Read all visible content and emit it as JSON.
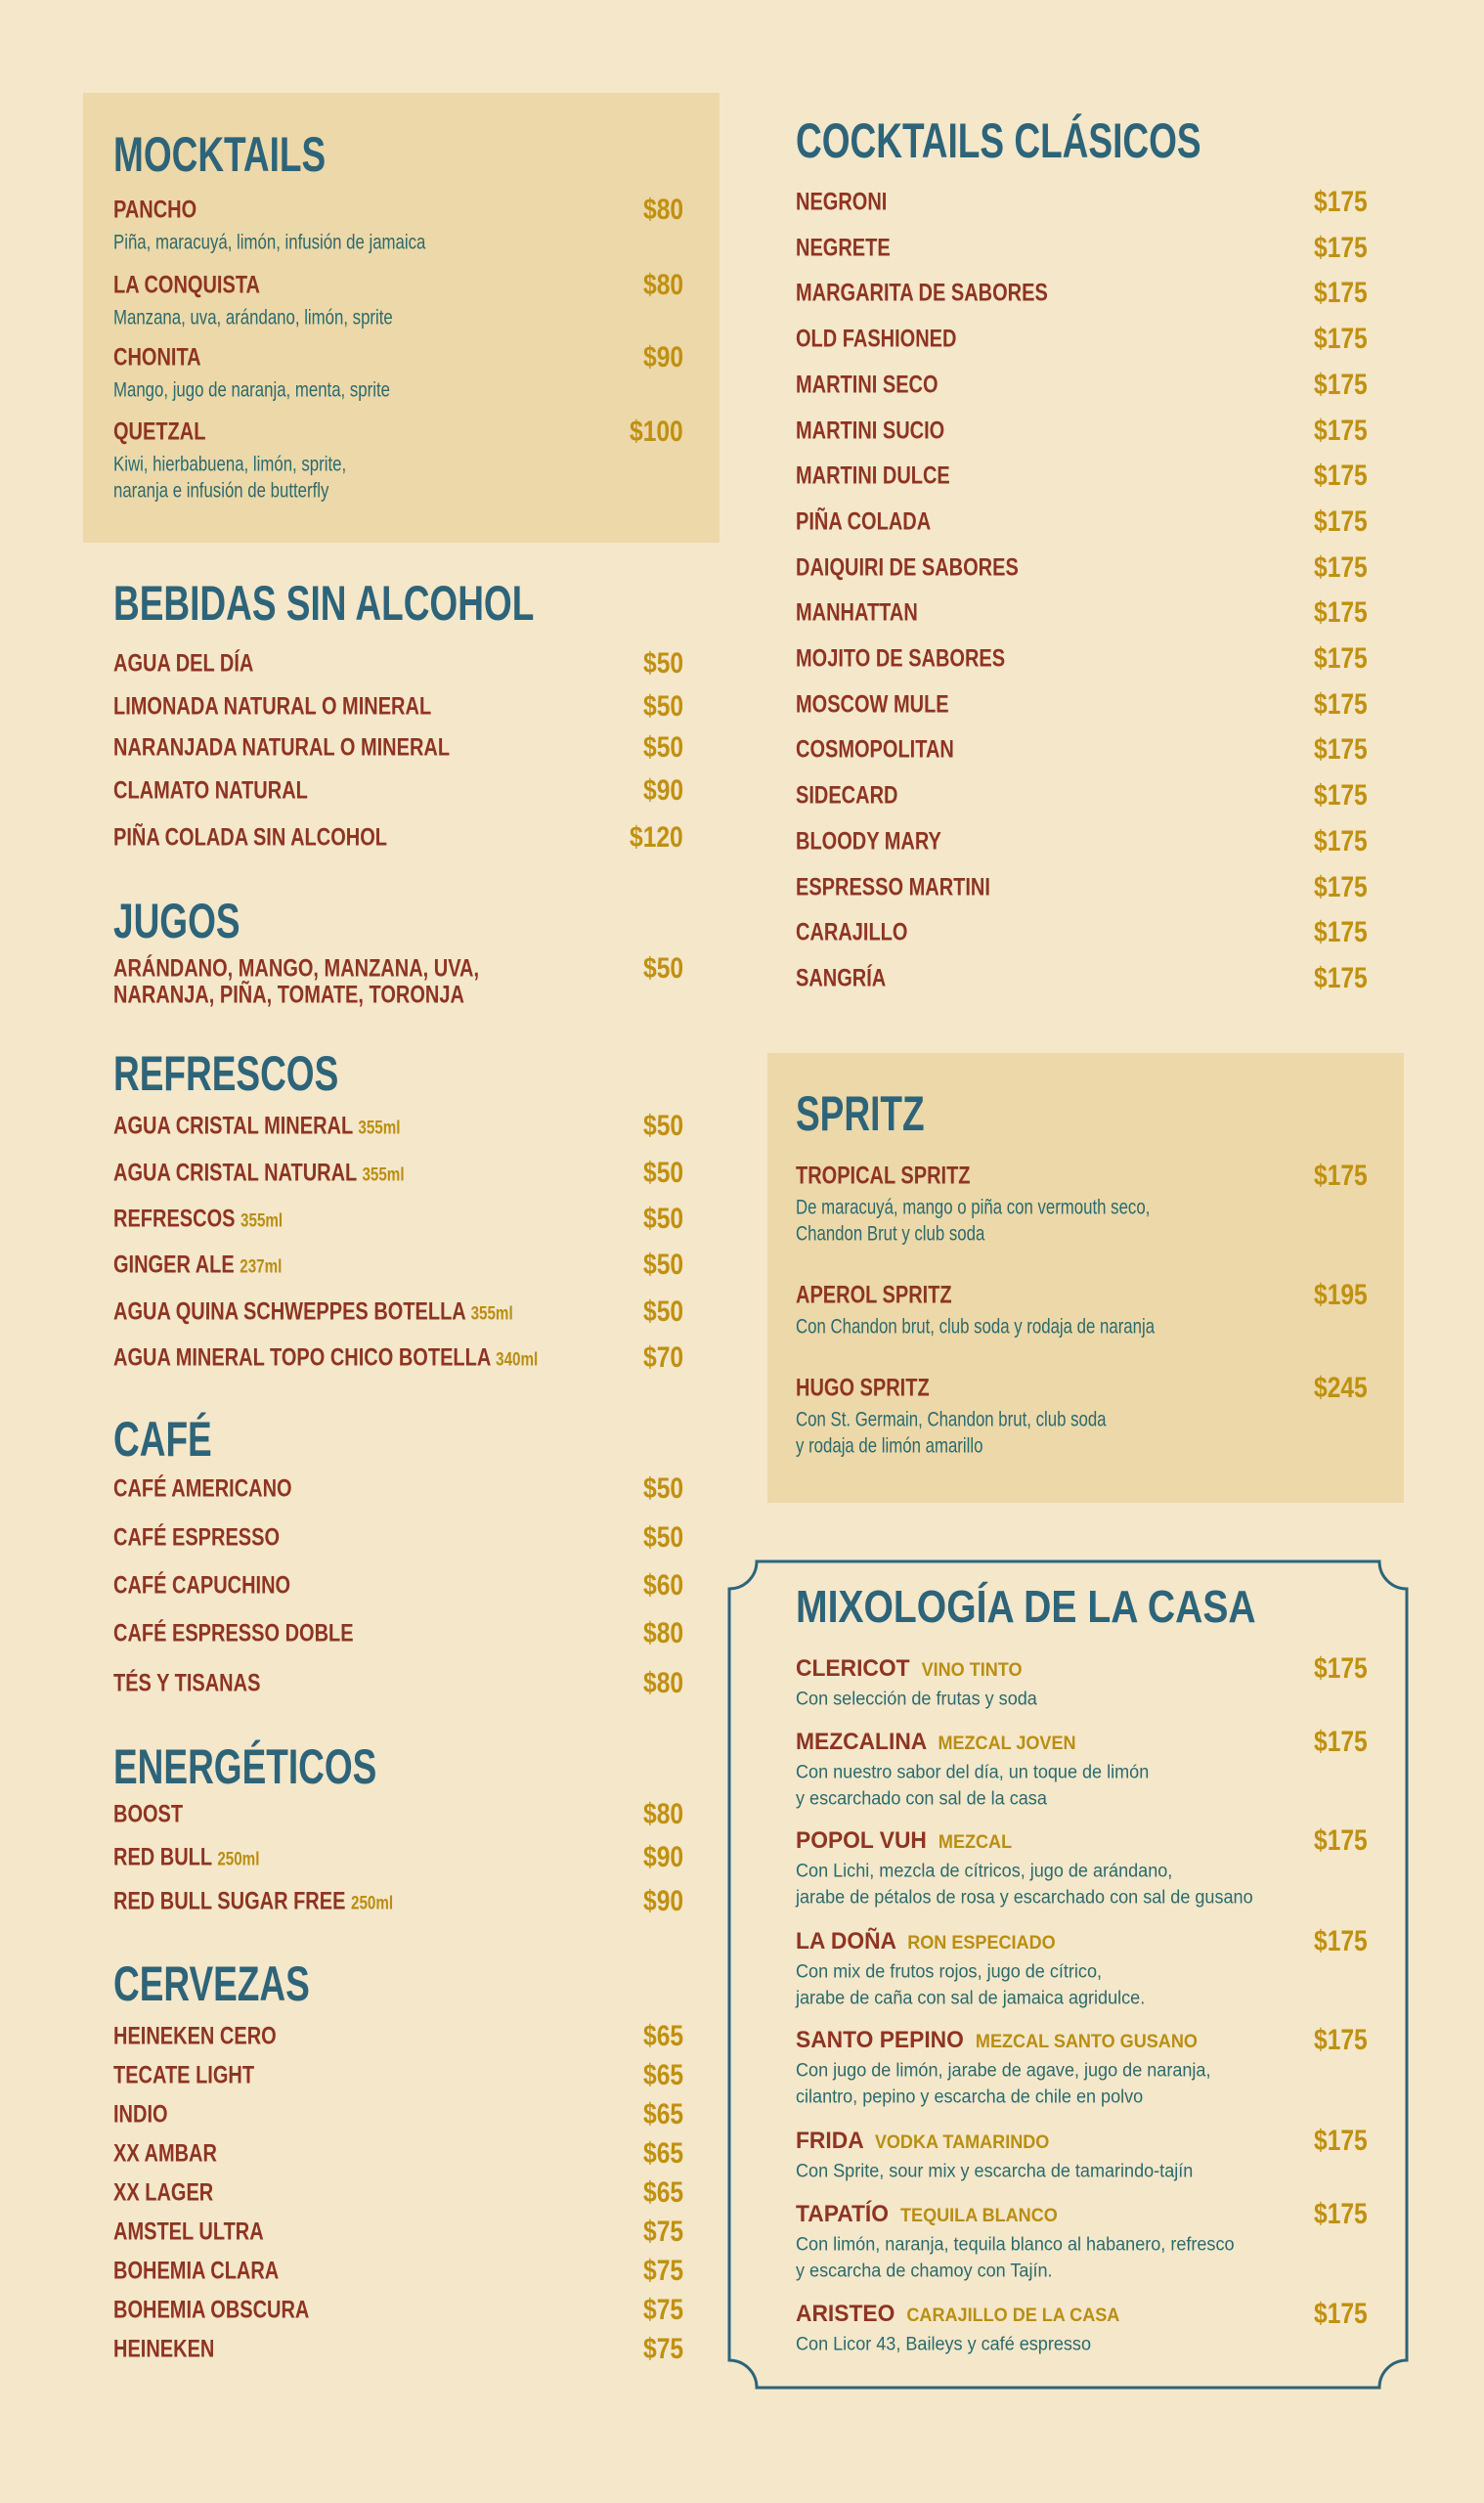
{
  "colors": {
    "heading": "#2d6479",
    "item": "#8e3422",
    "price": "#c0900f",
    "description": "#2c6a6c",
    "background": "#f4e7ca",
    "panel": "#ecd8a9"
  },
  "sections": [
    {
      "title": "MOCKTAILS",
      "items": [
        {
          "name": "PANCHO",
          "price": "$80",
          "desc": [
            "Piña, maracuyá, limón, infusión de jamaica"
          ]
        },
        {
          "name": "LA CONQUISTA",
          "price": "$80",
          "desc": [
            "Manzana, uva, arándano, limón, sprite"
          ]
        },
        {
          "name": "CHONITA",
          "price": "$90",
          "desc": [
            "Mango, jugo de naranja, menta, sprite"
          ]
        },
        {
          "name": "QUETZAL",
          "price": "$100",
          "desc": [
            "Kiwi, hierbabuena, limón, sprite,",
            "naranja e infusión de butterfly"
          ]
        }
      ]
    },
    {
      "title": "BEBIDAS SIN ALCOHOL",
      "items": [
        {
          "name": "AGUA DEL DÍA",
          "price": "$50"
        },
        {
          "name": "LIMONADA NATURAL O MINERAL",
          "price": "$50"
        },
        {
          "name": "NARANJADA NATURAL O MINERAL",
          "price": "$50"
        },
        {
          "name": "CLAMATO NATURAL",
          "price": "$90"
        },
        {
          "name": "PIÑA COLADA SIN ALCOHOL",
          "price": "$120"
        }
      ]
    },
    {
      "title": "JUGOS",
      "items": [
        {
          "name": "ARÁNDANO, MANGO, MANZANA, UVA,",
          "price": "$50"
        },
        {
          "name": "NARANJA, PIÑA, TOMATE, TORONJA"
        }
      ]
    },
    {
      "title": "REFRESCOS",
      "items": [
        {
          "name": "AGUA CRISTAL MINERAL",
          "note": "355ml",
          "price": "$50"
        },
        {
          "name": "AGUA CRISTAL NATURAL",
          "note": "355ml",
          "price": "$50"
        },
        {
          "name": "REFRESCOS",
          "note": "355ml",
          "price": "$50"
        },
        {
          "name": "GINGER ALE",
          "note": "237ml",
          "price": "$50"
        },
        {
          "name": "AGUA QUINA SCHWEPPES BOTELLA",
          "note": "355ml",
          "price": "$50"
        },
        {
          "name": "AGUA MINERAL TOPO CHICO BOTELLA",
          "note": "340ml",
          "price": "$70"
        }
      ]
    },
    {
      "title": "CAFÉ",
      "items": [
        {
          "name": "CAFÉ AMERICANO",
          "price": "$50"
        },
        {
          "name": "CAFÉ ESPRESSO",
          "price": "$50"
        },
        {
          "name": "CAFÉ CAPUCHINO",
          "price": "$60"
        },
        {
          "name": "CAFÉ ESPRESSO DOBLE",
          "price": "$80"
        },
        {
          "name": "TÉS Y TISANAS",
          "price": "$80"
        }
      ]
    },
    {
      "title": "ENERGÉTICOS",
      "items": [
        {
          "name": "BOOST",
          "price": "$80"
        },
        {
          "name": "RED BULL",
          "note": "250ml",
          "price": "$90"
        },
        {
          "name": "RED BULL SUGAR FREE",
          "note": "250ml",
          "price": "$90"
        }
      ]
    },
    {
      "title": "CERVEZAS",
      "items": [
        {
          "name": "HEINEKEN CERO",
          "price": "$65"
        },
        {
          "name": "TECATE LIGHT",
          "price": "$65"
        },
        {
          "name": "INDIO",
          "price": "$65"
        },
        {
          "name": "XX AMBAR",
          "price": "$65"
        },
        {
          "name": "XX LAGER",
          "price": "$65"
        },
        {
          "name": "AMSTEL ULTRA",
          "price": "$75"
        },
        {
          "name": "BOHEMIA CLARA",
          "price": "$75"
        },
        {
          "name": "BOHEMIA OBSCURA",
          "price": "$75"
        },
        {
          "name": "HEINEKEN",
          "price": "$75"
        }
      ]
    },
    {
      "title": "COCKTAILS CLÁSICOS",
      "items": [
        {
          "name": "NEGRONI",
          "price": "$175"
        },
        {
          "name": "NEGRETE",
          "price": "$175"
        },
        {
          "name": "MARGARITA DE SABORES",
          "price": "$175"
        },
        {
          "name": "OLD FASHIONED",
          "price": "$175"
        },
        {
          "name": "MARTINI SECO",
          "price": "$175"
        },
        {
          "name": "MARTINI SUCIO",
          "price": "$175"
        },
        {
          "name": "MARTINI DULCE",
          "price": "$175"
        },
        {
          "name": "PIÑA COLADA",
          "price": "$175"
        },
        {
          "name": "DAIQUIRI DE SABORES",
          "price": "$175"
        },
        {
          "name": "MANHATTAN",
          "price": "$175"
        },
        {
          "name": "MOJITO DE SABORES",
          "price": "$175"
        },
        {
          "name": "MOSCOW MULE",
          "price": "$175"
        },
        {
          "name": "COSMOPOLITAN",
          "price": "$175"
        },
        {
          "name": "SIDECARD",
          "price": "$175"
        },
        {
          "name": "BLOODY MARY",
          "price": "$175"
        },
        {
          "name": "ESPRESSO MARTINI",
          "price": "$175"
        },
        {
          "name": "CARAJILLO",
          "price": "$175"
        },
        {
          "name": "SANGRÍA",
          "price": "$175"
        }
      ]
    },
    {
      "title": "SPRITZ",
      "items": [
        {
          "name": "TROPICAL SPRITZ",
          "price": "$175",
          "desc": [
            "De maracuyá, mango o piña con vermouth seco,",
            "Chandon Brut y club soda"
          ]
        },
        {
          "name": "APEROL SPRITZ",
          "price": "$195",
          "desc": [
            "Con Chandon brut, club soda y rodaja de naranja"
          ]
        },
        {
          "name": "HUGO SPRITZ",
          "price": "$245",
          "desc": [
            "Con St. Germain, Chandon brut, club soda",
            "y rodaja de limón amarillo"
          ]
        }
      ]
    },
    {
      "title": "MIXOLOGÍA DE LA CASA",
      "items": [
        {
          "name": "CLERICOT",
          "note": "VINO TINTO",
          "price": "$175",
          "desc": [
            "Con selección de frutas y soda"
          ]
        },
        {
          "name": "MEZCALINA",
          "note": "MEZCAL JOVEN",
          "price": "$175",
          "desc": [
            "Con nuestro sabor del día, un toque de limón",
            "y escarchado con sal de la casa"
          ]
        },
        {
          "name": "POPOL VUH",
          "note": "MEZCAL",
          "price": "$175",
          "desc": [
            "Con Lichi, mezcla de cítricos, jugo de arándano,",
            "jarabe de pétalos de rosa y escarchado con sal de gusano"
          ]
        },
        {
          "name": "LA DOÑA",
          "note": "RON ESPECIADO",
          "price": "$175",
          "desc": [
            "Con mix de frutos rojos, jugo de cítrico,",
            "jarabe de caña con sal de jamaica agridulce."
          ]
        },
        {
          "name": "SANTO PEPINO",
          "note": "MEZCAL SANTO GUSANO",
          "price": "$175",
          "desc": [
            "Con jugo de limón, jarabe de agave, jugo de naranja,",
            "cilantro, pepino y escarcha de chile en polvo"
          ]
        },
        {
          "name": "FRIDA",
          "note": "VODKA TAMARINDO",
          "price": "$175",
          "desc": [
            "Con Sprite, sour mix y escarcha de tamarindo-tajín"
          ]
        },
        {
          "name": "TAPATÍO",
          "note": "TEQUILA BLANCO",
          "price": "$175",
          "desc": [
            "Con limón, naranja, tequila blanco al habanero, refresco",
            "y escarcha de chamoy con Tajín."
          ]
        },
        {
          "name": "ARISTEO",
          "note": "CARAJILLO DE LA CASA",
          "price": "$175",
          "desc": [
            "Con Licor 43, Baileys y café espresso"
          ]
        }
      ]
    }
  ]
}
